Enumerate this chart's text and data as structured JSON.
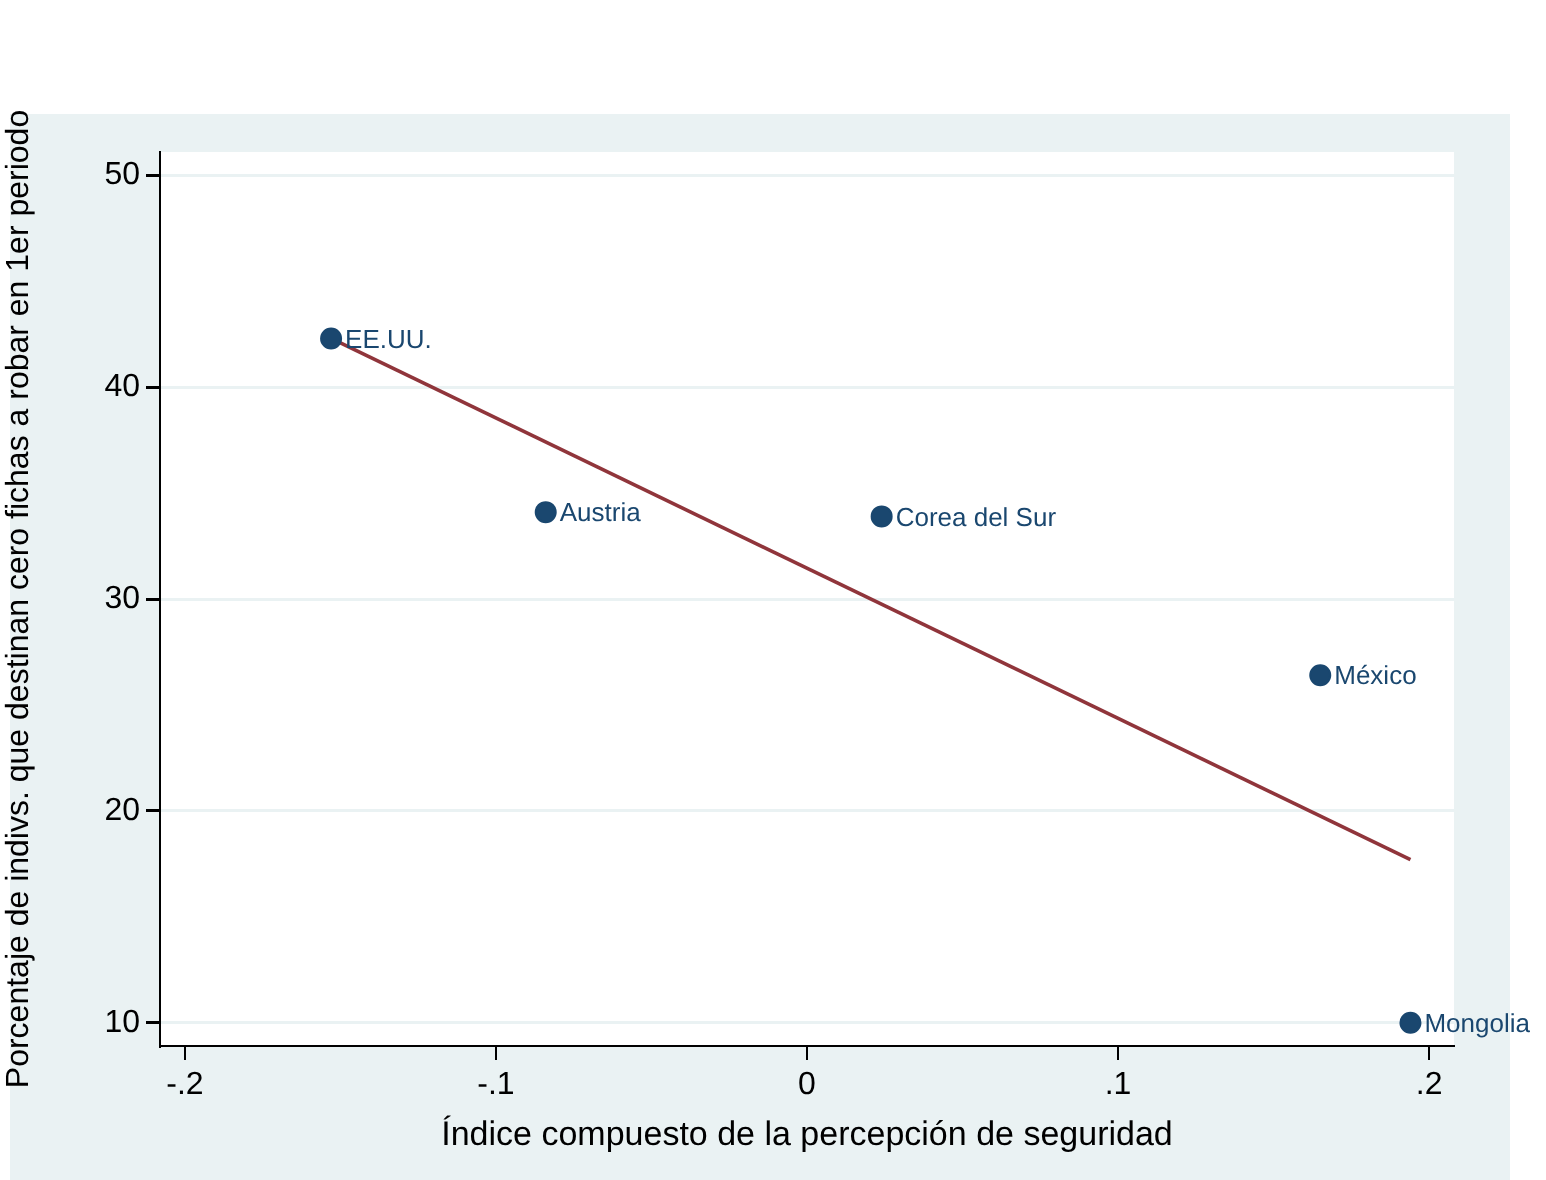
{
  "chart_data": {
    "type": "scatter",
    "xlabel": "Índice compuesto de la percepción de seguridad",
    "ylabel": "Porcentaje de indivs. que destinan cero fichas a robar en 1er periodo",
    "xlim": [
      -0.208,
      0.208
    ],
    "xticks": [
      {
        "value": -0.2,
        "label": "-.2"
      },
      {
        "value": -0.1,
        "label": "-.1"
      },
      {
        "value": 0,
        "label": "0"
      },
      {
        "value": 0.1,
        "label": ".1"
      },
      {
        "value": 0.2,
        "label": ".2"
      }
    ],
    "ylim": [
      8.9,
      51.1
    ],
    "yticks": [
      10,
      20,
      30,
      40,
      50
    ],
    "series": [
      {
        "color": "#1a476f",
        "x": [
          -0.153,
          -0.084,
          0.024,
          0.165,
          0.194
        ],
        "values": [
          42.3,
          34.1,
          33.9,
          26.4,
          10.0
        ]
      },
      {
        "type": "line",
        "marker": "none",
        "color": "#90353b",
        "x": [
          -0.153,
          0.194
        ],
        "values": [
          42.3,
          17.7
        ]
      }
    ],
    "annotations": [
      {
        "text": "EE.UU.",
        "x": -0.153,
        "y": 42.3
      },
      {
        "text": "Austria",
        "x": -0.084,
        "y": 34.1
      },
      {
        "text": "Corea del Sur",
        "x": 0.024,
        "y": 33.9
      },
      {
        "text": "México",
        "x": 0.165,
        "y": 26.4
      },
      {
        "text": "Mongolia",
        "x": 0.194,
        "y": 10.0
      }
    ],
    "grid": "y",
    "legend": false,
    "marker": "circle"
  }
}
